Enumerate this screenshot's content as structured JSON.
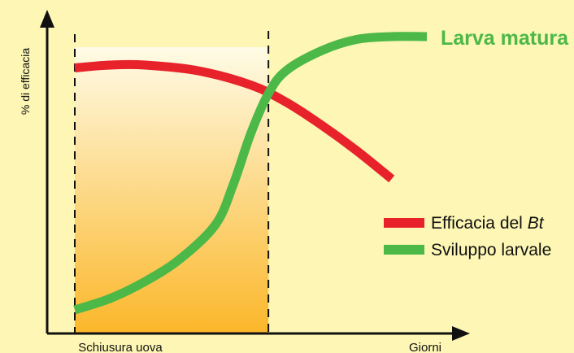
{
  "chart_data": {
    "type": "line",
    "ylabel": "% di efficacia",
    "xlabel": "Giorni",
    "x_ticks": [
      "Schiusura uova"
    ],
    "annotations": [
      {
        "text": "Larva matura",
        "color": "#4cb848"
      }
    ],
    "shaded_region": {
      "label": "Schiusura uova",
      "from_color": "#fefbe6",
      "to_color": "#fbb72a"
    },
    "xlim": [
      0,
      100
    ],
    "ylim": [
      0,
      100
    ],
    "series": [
      {
        "name": "Efficacia del Bt",
        "name_plain": "Efficacia del ",
        "name_italic": "Bt",
        "color": "#e8222a",
        "x": [
          0,
          10,
          20,
          35,
          50,
          60,
          70,
          80,
          90
        ],
        "y": [
          89,
          90,
          90,
          88,
          83,
          77,
          69,
          60,
          50
        ]
      },
      {
        "name": "Sviluppo larvale",
        "color": "#4cb848",
        "x": [
          0,
          10,
          20,
          30,
          40,
          45,
          50,
          55,
          60,
          70,
          80,
          90,
          100
        ],
        "y": [
          4,
          8,
          14,
          22,
          34,
          48,
          66,
          80,
          88,
          95,
          99,
          100,
          100
        ]
      }
    ],
    "shade_range_x": [
      0,
      55
    ],
    "legend_position": "right"
  }
}
